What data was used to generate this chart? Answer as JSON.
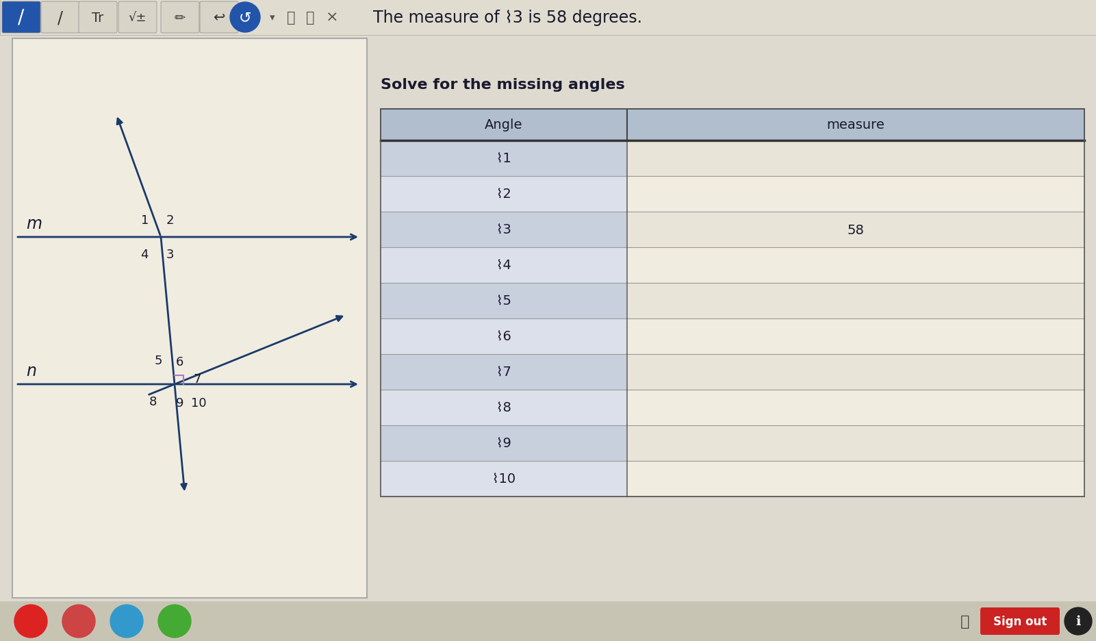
{
  "title_text": "The measure of ⌇3 is 58 degrees.",
  "subtitle_text": "Solve for the missing angles",
  "table_rows": [
    [
      "⌇1",
      ""
    ],
    [
      "⌇2",
      ""
    ],
    [
      "⌇3",
      "58"
    ],
    [
      "⌇4",
      ""
    ],
    [
      "⌇5",
      ""
    ],
    [
      "⌇6",
      ""
    ],
    [
      "⌇7",
      ""
    ],
    [
      "⌇8",
      ""
    ],
    [
      "⌇9",
      ""
    ],
    [
      "⌇10",
      ""
    ]
  ],
  "bg_color": "#dedad0",
  "left_panel_bg": "#f0ece0",
  "table_header_bg": "#b0bece",
  "table_row_bg1": "#c8d0de",
  "table_row_bg2": "#dce0ea",
  "table_col2_bg1": "#e8e4d8",
  "table_col2_bg2": "#f0ece0",
  "line_color": "#1a3a6b",
  "text_color": "#1a1a2e",
  "toolbar_btn_active": "#2255aa",
  "toolbar_btn_inactive": "#d8d4c8",
  "toolbar_bg": "#e0ddd0",
  "taskbar_bg": "#c8c4b4",
  "right_bg": "#dedad0",
  "signout_color": "#cc2222"
}
